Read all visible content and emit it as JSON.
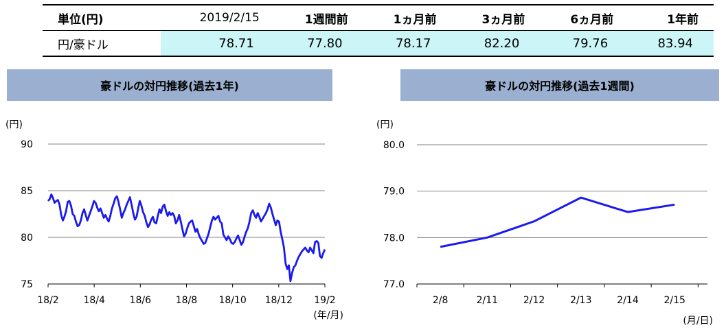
{
  "table": {
    "header_label": "単位(円)",
    "columns": [
      "2019/2/15",
      "1週間前",
      "1ヵ月前",
      "3ヵ月前",
      "6ヵ月前",
      "1年前"
    ],
    "row_label": "円/豪ドル",
    "values": [
      "78.71",
      "77.80",
      "78.17",
      "82.20",
      "79.76",
      "83.94"
    ]
  },
  "chart_left_title": "豪ドルの対円推移(過去1年)",
  "chart_right_title": "豪ドルの対円推移(過去1週間)",
  "chart_data": [
    {
      "type": "line",
      "title": "豪ドルの対円推移(過去1年)",
      "ylabel": "(円)",
      "xlabel": "(年/月)",
      "ylim": [
        75,
        90
      ],
      "yticks": [
        "75",
        "80",
        "85",
        "90"
      ],
      "xticks": [
        "18/2",
        "18/4",
        "18/6",
        "18/8",
        "18/10",
        "18/12",
        "19/2"
      ],
      "grid": true,
      "color": "#1a1aee",
      "series": [
        {
          "values": [
            83.9,
            84.1,
            84.6,
            84.2,
            83.7,
            83.9,
            84.0,
            83.5,
            82.4,
            81.8,
            82.2,
            82.8,
            83.8,
            83.9,
            83.4,
            82.5,
            82.3,
            81.7,
            81.2,
            81.3,
            81.8,
            82.6,
            83.0,
            82.4,
            81.8,
            82.3,
            82.8,
            83.3,
            83.9,
            83.7,
            83.2,
            82.8,
            83.1,
            82.6,
            82.1,
            82.4,
            82.0,
            81.7,
            82.3,
            83.1,
            83.6,
            84.2,
            84.4,
            83.8,
            83.0,
            82.1,
            82.6,
            83.0,
            83.5,
            83.9,
            84.3,
            83.5,
            82.6,
            81.9,
            82.2,
            83.1,
            83.9,
            83.4,
            82.7,
            82.3,
            81.6,
            81.1,
            81.4,
            81.9,
            82.2,
            81.6,
            81.5,
            82.3,
            83.0,
            82.6,
            83.3,
            83.5,
            82.8,
            82.3,
            82.7,
            82.4,
            82.6,
            82.3,
            81.5,
            81.8,
            82.4,
            81.7,
            80.9,
            80.1,
            80.4,
            81.0,
            81.5,
            81.7,
            81.8,
            81.2,
            80.6,
            80.9,
            80.3,
            79.9,
            79.6,
            79.3,
            79.4,
            79.9,
            80.4,
            81.1,
            81.8,
            82.2,
            81.9,
            82.1,
            82.3,
            81.7,
            81.5,
            80.3,
            80.0,
            79.7,
            80.1,
            79.8,
            79.4,
            79.3,
            79.5,
            79.9,
            80.2,
            79.7,
            79.2,
            79.5,
            80.1,
            80.6,
            81.0,
            81.7,
            82.6,
            82.9,
            82.4,
            82.1,
            82.6,
            82.2,
            81.7,
            82.0,
            82.3,
            82.6,
            83.0,
            83.6,
            83.2,
            82.5,
            81.9,
            81.3,
            81.8,
            81.7,
            80.6,
            79.8,
            78.9,
            77.2,
            76.6,
            77.0,
            75.3,
            76.2,
            76.8,
            77.0,
            77.5,
            77.9,
            78.2,
            78.5,
            78.7,
            78.9,
            78.6,
            78.4,
            78.9,
            78.6,
            78.3,
            79.5,
            79.6,
            79.4,
            78.0,
            77.8,
            78.3,
            78.7
          ]
        }
      ]
    },
    {
      "type": "line",
      "title": "豪ドルの対円推移(過去1週間)",
      "ylabel": "(円)",
      "xlabel": "(月/日)",
      "ylim": [
        77.0,
        80.0
      ],
      "yticks": [
        "77.0",
        "78.0",
        "79.0",
        "80.0"
      ],
      "categories": [
        "2/8",
        "2/11",
        "2/12",
        "2/13",
        "2/14",
        "2/15"
      ],
      "grid": true,
      "color": "#1a1aee",
      "series": [
        {
          "values": [
            77.8,
            78.0,
            78.35,
            78.86,
            78.55,
            78.71
          ]
        }
      ]
    }
  ]
}
